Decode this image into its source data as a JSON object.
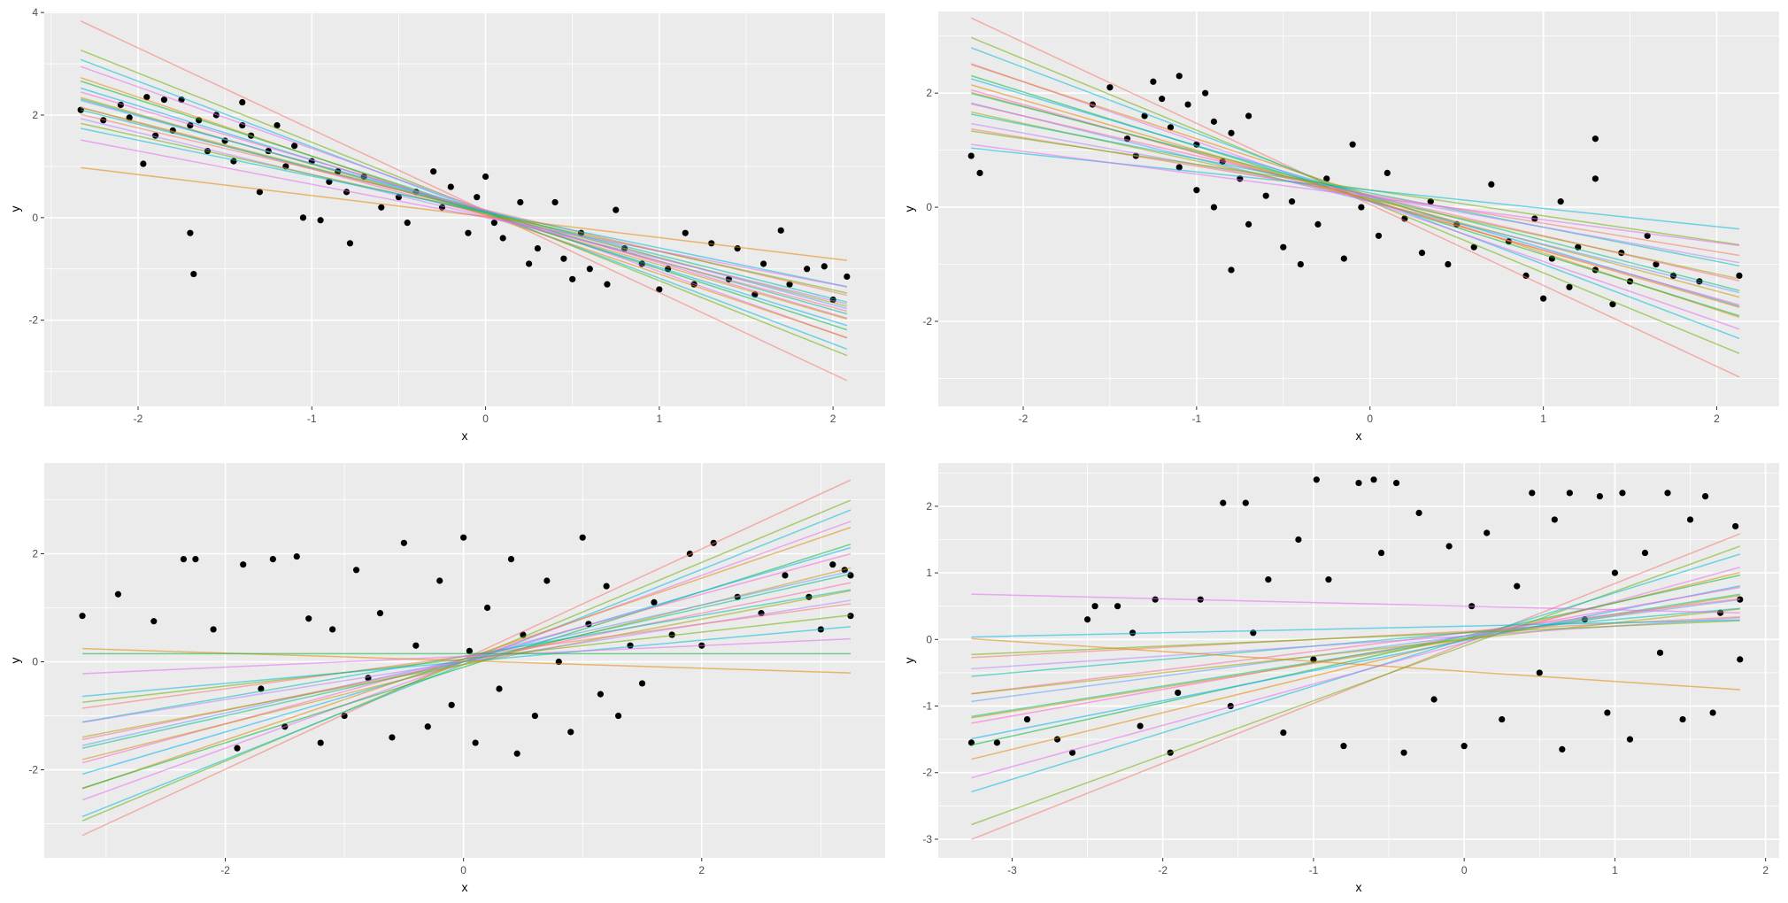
{
  "line_colors": [
    "#F8766D",
    "#E58700",
    "#C99800",
    "#A3A500",
    "#6BB100",
    "#00BA38",
    "#00BF7D",
    "#00C0AF",
    "#00BCD8",
    "#00B0F6",
    "#619CFF",
    "#B983FF",
    "#E76BF3",
    "#FD61D1",
    "#FF67A4"
  ],
  "point_color": "#000000",
  "panel_background": "#EBEBEB",
  "grid_color": "#FFFFFF",
  "chart_data": [
    {
      "type": "scatter",
      "xlabel": "x",
      "ylabel": "y",
      "xlim": [
        -2.54,
        2.3
      ],
      "ylim": [
        -3.68,
        4.02
      ],
      "xticks": [
        -2,
        -1,
        0,
        1,
        2
      ],
      "yticks": [
        -2,
        0,
        2,
        4
      ],
      "grid": true,
      "line_x_range": [
        -2.33,
        2.08
      ],
      "lines": [
        [
          0.13,
          -1.59
        ],
        [
          0.12,
          -1.35
        ],
        [
          0.1,
          -1.28
        ],
        [
          0.15,
          -1.2
        ],
        [
          0.05,
          -1.15
        ],
        [
          0.1,
          -1.1
        ],
        [
          0.08,
          -1.05
        ],
        [
          0.12,
          -1.0
        ],
        [
          0.06,
          -0.98
        ],
        [
          0.1,
          -0.95
        ],
        [
          0.14,
          -0.92
        ],
        [
          0.05,
          -0.9
        ],
        [
          0.1,
          -0.88
        ],
        [
          0.12,
          -0.85
        ],
        [
          0.02,
          -0.82
        ],
        [
          0.15,
          -0.8
        ],
        [
          0.09,
          -0.75
        ],
        [
          0.11,
          -0.7
        ],
        [
          0.0,
          -0.65
        ],
        [
          0.02,
          -0.41
        ]
      ],
      "points": [
        [
          -2.33,
          2.1
        ],
        [
          -2.2,
          1.9
        ],
        [
          -2.1,
          2.2
        ],
        [
          -2.05,
          1.95
        ],
        [
          -1.97,
          1.05
        ],
        [
          -1.95,
          2.35
        ],
        [
          -1.9,
          1.6
        ],
        [
          -1.85,
          2.3
        ],
        [
          -1.8,
          1.7
        ],
        [
          -1.75,
          2.3
        ],
        [
          -1.7,
          1.8
        ],
        [
          -1.65,
          1.9
        ],
        [
          -1.6,
          1.3
        ],
        [
          -1.55,
          2.0
        ],
        [
          -1.5,
          1.5
        ],
        [
          -1.45,
          1.1
        ],
        [
          -1.4,
          1.8
        ],
        [
          -1.35,
          1.6
        ],
        [
          -1.3,
          0.5
        ],
        [
          -1.25,
          1.3
        ],
        [
          -1.2,
          1.8
        ],
        [
          -1.15,
          1.0
        ],
        [
          -1.1,
          1.4
        ],
        [
          -1.05,
          0.0
        ],
        [
          -1.0,
          1.1
        ],
        [
          -0.95,
          -0.05
        ],
        [
          -0.9,
          0.7
        ],
        [
          -0.85,
          0.9
        ],
        [
          -0.8,
          0.5
        ],
        [
          -0.7,
          0.8
        ],
        [
          -0.6,
          0.2
        ],
        [
          -0.5,
          0.4
        ],
        [
          -0.45,
          -0.1
        ],
        [
          -0.4,
          0.5
        ],
        [
          -0.3,
          0.9
        ],
        [
          -0.25,
          0.2
        ],
        [
          -0.2,
          0.6
        ],
        [
          -0.1,
          -0.3
        ],
        [
          -0.05,
          0.4
        ],
        [
          0.0,
          0.8
        ],
        [
          0.05,
          -0.1
        ],
        [
          0.1,
          -0.4
        ],
        [
          0.2,
          0.3
        ],
        [
          0.25,
          -0.9
        ],
        [
          0.3,
          -0.6
        ],
        [
          0.4,
          0.3
        ],
        [
          0.45,
          -0.8
        ],
        [
          0.5,
          -1.2
        ],
        [
          0.55,
          -0.3
        ],
        [
          0.6,
          -1.0
        ],
        [
          0.7,
          -1.3
        ],
        [
          0.75,
          0.15
        ],
        [
          0.8,
          -0.6
        ],
        [
          0.9,
          -0.9
        ],
        [
          1.0,
          -1.4
        ],
        [
          1.05,
          -1.0
        ],
        [
          1.15,
          -0.3
        ],
        [
          1.2,
          -1.3
        ],
        [
          1.3,
          -0.5
        ],
        [
          1.4,
          -1.2
        ],
        [
          1.45,
          -0.6
        ],
        [
          1.55,
          -1.5
        ],
        [
          1.6,
          -0.9
        ],
        [
          1.7,
          -0.25
        ],
        [
          1.75,
          -1.3
        ],
        [
          1.85,
          -1.0
        ],
        [
          1.95,
          -0.95
        ],
        [
          2.0,
          -1.6
        ],
        [
          2.08,
          -1.15
        ],
        [
          -1.7,
          -0.3
        ],
        [
          -1.68,
          -1.1
        ],
        [
          -1.4,
          2.25
        ],
        [
          -0.78,
          -0.5
        ]
      ]
    },
    {
      "type": "scatter",
      "xlabel": "x",
      "ylabel": "y",
      "xlim": [
        -2.49,
        2.36
      ],
      "ylim": [
        -3.49,
        3.43
      ],
      "xticks": [
        -2,
        -1,
        0,
        1,
        2
      ],
      "yticks": [
        -2,
        0,
        2
      ],
      "grid": true,
      "line_x_range": [
        -2.3,
        2.13
      ],
      "lines": [
        [
          0.05,
          -1.42
        ],
        [
          0.1,
          -1.25
        ],
        [
          0.15,
          -1.15
        ],
        [
          0.1,
          -1.05
        ],
        [
          0.2,
          -1.0
        ],
        [
          0.12,
          -0.95
        ],
        [
          0.18,
          -0.9
        ],
        [
          0.1,
          -0.85
        ],
        [
          0.15,
          -0.81
        ],
        [
          0.2,
          -0.78
        ],
        [
          0.1,
          -0.75
        ],
        [
          0.2,
          -0.7
        ],
        [
          0.15,
          -0.66
        ],
        [
          0.25,
          -0.6
        ],
        [
          0.2,
          -0.55
        ],
        [
          0.22,
          -0.5
        ],
        [
          0.3,
          -0.45
        ],
        [
          0.3,
          -0.32
        ],
        [
          0.18,
          -0.4
        ],
        [
          0.12,
          -0.88
        ]
      ],
      "points": [
        [
          -2.3,
          0.9
        ],
        [
          -2.25,
          0.6
        ],
        [
          -1.6,
          1.8
        ],
        [
          -1.5,
          2.1
        ],
        [
          -1.4,
          1.2
        ],
        [
          -1.35,
          0.9
        ],
        [
          -1.3,
          1.6
        ],
        [
          -1.25,
          2.2
        ],
        [
          -1.2,
          1.9
        ],
        [
          -1.15,
          1.4
        ],
        [
          -1.1,
          2.3
        ],
        [
          -1.1,
          0.7
        ],
        [
          -1.05,
          1.8
        ],
        [
          -1.0,
          1.1
        ],
        [
          -1.0,
          0.3
        ],
        [
          -0.95,
          2.0
        ],
        [
          -0.9,
          1.5
        ],
        [
          -0.9,
          0.0
        ],
        [
          -0.85,
          0.8
        ],
        [
          -0.8,
          1.3
        ],
        [
          -0.8,
          -1.1
        ],
        [
          -0.75,
          0.5
        ],
        [
          -0.7,
          1.6
        ],
        [
          -0.7,
          -0.3
        ],
        [
          -0.6,
          0.2
        ],
        [
          -0.5,
          -0.7
        ],
        [
          -0.45,
          0.1
        ],
        [
          -0.4,
          -1.0
        ],
        [
          -0.3,
          -0.3
        ],
        [
          -0.25,
          0.5
        ],
        [
          -0.15,
          -0.9
        ],
        [
          -0.1,
          1.1
        ],
        [
          -0.05,
          0.0
        ],
        [
          0.05,
          -0.5
        ],
        [
          0.1,
          0.6
        ],
        [
          0.2,
          -0.2
        ],
        [
          0.3,
          -0.8
        ],
        [
          0.35,
          0.1
        ],
        [
          0.45,
          -1.0
        ],
        [
          0.5,
          -0.3
        ],
        [
          0.6,
          -0.7
        ],
        [
          0.7,
          0.4
        ],
        [
          0.8,
          -0.6
        ],
        [
          0.9,
          -1.2
        ],
        [
          0.95,
          -0.2
        ],
        [
          1.0,
          -1.6
        ],
        [
          1.05,
          -0.9
        ],
        [
          1.1,
          0.1
        ],
        [
          1.15,
          -1.4
        ],
        [
          1.2,
          -0.7
        ],
        [
          1.3,
          1.2
        ],
        [
          1.3,
          0.5
        ],
        [
          1.3,
          -1.1
        ],
        [
          1.4,
          -1.7
        ],
        [
          1.45,
          -0.8
        ],
        [
          1.5,
          -1.3
        ],
        [
          1.6,
          -0.5
        ],
        [
          1.65,
          -1.0
        ],
        [
          1.75,
          -1.2
        ],
        [
          1.9,
          -1.3
        ],
        [
          2.13,
          -1.2
        ]
      ]
    },
    {
      "type": "scatter",
      "xlabel": "x",
      "ylabel": "y",
      "xlim": [
        -3.52,
        3.54
      ],
      "ylim": [
        -3.63,
        3.68
      ],
      "xticks": [
        -2,
        0,
        2
      ],
      "yticks": [
        -2,
        0,
        2
      ],
      "grid": true,
      "line_x_range": [
        -3.2,
        3.25
      ],
      "lines": [
        [
          0.05,
          1.02
        ],
        [
          0.0,
          0.92
        ],
        [
          -0.05,
          0.88
        ],
        [
          0.0,
          0.8
        ],
        [
          0.05,
          0.75
        ],
        [
          -0.1,
          0.7
        ],
        [
          0.0,
          0.65
        ],
        [
          0.05,
          0.6
        ],
        [
          -0.05,
          0.55
        ],
        [
          0.0,
          0.5
        ],
        [
          0.05,
          0.5
        ],
        [
          0.0,
          0.45
        ],
        [
          -0.05,
          0.42
        ],
        [
          0.1,
          0.38
        ],
        [
          0.0,
          0.35
        ],
        [
          0.1,
          0.3
        ],
        [
          0.05,
          0.25
        ],
        [
          0.0,
          0.2
        ],
        [
          0.1,
          0.1
        ],
        [
          0.02,
          -0.07
        ],
        [
          0.15,
          0.0
        ]
      ],
      "points": [
        [
          -3.2,
          0.85
        ],
        [
          -2.9,
          1.25
        ],
        [
          -2.6,
          0.75
        ],
        [
          -2.35,
          1.9
        ],
        [
          -2.25,
          1.9
        ],
        [
          -2.1,
          0.6
        ],
        [
          -1.9,
          -1.6
        ],
        [
          -1.85,
          1.8
        ],
        [
          -1.7,
          -0.5
        ],
        [
          -1.6,
          1.9
        ],
        [
          -1.5,
          -1.2
        ],
        [
          -1.4,
          1.95
        ],
        [
          -1.3,
          0.8
        ],
        [
          -1.2,
          -1.5
        ],
        [
          -1.1,
          0.6
        ],
        [
          -1.0,
          -1.0
        ],
        [
          -0.9,
          1.7
        ],
        [
          -0.8,
          -0.3
        ],
        [
          -0.7,
          0.9
        ],
        [
          -0.6,
          -1.4
        ],
        [
          -0.5,
          2.2
        ],
        [
          -0.4,
          0.3
        ],
        [
          -0.3,
          -1.2
        ],
        [
          -0.2,
          1.5
        ],
        [
          -0.1,
          -0.8
        ],
        [
          0.0,
          2.3
        ],
        [
          0.05,
          0.2
        ],
        [
          0.1,
          -1.5
        ],
        [
          0.2,
          1.0
        ],
        [
          0.3,
          -0.5
        ],
        [
          0.4,
          1.9
        ],
        [
          0.45,
          -1.7
        ],
        [
          0.5,
          0.5
        ],
        [
          0.6,
          -1.0
        ],
        [
          0.7,
          1.5
        ],
        [
          0.8,
          0.0
        ],
        [
          0.9,
          -1.3
        ],
        [
          1.0,
          2.3
        ],
        [
          1.05,
          0.7
        ],
        [
          1.15,
          -0.6
        ],
        [
          1.2,
          1.4
        ],
        [
          1.3,
          -1.0
        ],
        [
          1.4,
          0.3
        ],
        [
          1.5,
          -0.4
        ],
        [
          1.6,
          1.1
        ],
        [
          1.75,
          0.5
        ],
        [
          1.9,
          2.0
        ],
        [
          2.0,
          0.3
        ],
        [
          2.1,
          2.2
        ],
        [
          2.3,
          1.2
        ],
        [
          2.5,
          0.9
        ],
        [
          2.7,
          1.6
        ],
        [
          2.9,
          1.2
        ],
        [
          3.0,
          0.6
        ],
        [
          3.1,
          1.8
        ],
        [
          3.2,
          1.7
        ],
        [
          3.25,
          0.85
        ],
        [
          3.25,
          1.6
        ]
      ]
    },
    {
      "type": "scatter",
      "xlabel": "x",
      "ylabel": "y",
      "xlim": [
        -3.49,
        2.09
      ],
      "ylim": [
        -3.28,
        2.65
      ],
      "xticks": [
        -3,
        -2,
        -1,
        0,
        1,
        2
      ],
      "yticks": [
        -3,
        -2,
        -1,
        0,
        1,
        2
      ],
      "grid": true,
      "line_x_range": [
        -3.27,
        1.83
      ],
      "lines": [
        [
          -0.06,
          0.9
        ],
        [
          -0.1,
          0.82
        ],
        [
          0.0,
          0.7
        ],
        [
          -0.05,
          0.62
        ],
        [
          0.0,
          0.55
        ],
        [
          0.05,
          0.5
        ],
        [
          -0.02,
          0.45
        ],
        [
          0.05,
          0.4
        ],
        [
          0.0,
          0.36
        ],
        [
          0.02,
          0.36
        ],
        [
          0.05,
          0.3
        ],
        [
          0.1,
          0.28
        ],
        [
          0.0,
          0.25
        ],
        [
          0.1,
          0.2
        ],
        [
          0.05,
          0.15
        ],
        [
          0.12,
          0.12
        ],
        [
          0.1,
          0.1
        ],
        [
          0.2,
          0.05
        ],
        [
          0.5,
          -0.055
        ],
        [
          -0.48,
          -0.15
        ]
      ],
      "points": [
        [
          -3.27,
          -1.55
        ],
        [
          -3.1,
          -1.55
        ],
        [
          -2.9,
          -1.2
        ],
        [
          -2.7,
          -1.5
        ],
        [
          -2.6,
          -1.7
        ],
        [
          -2.5,
          0.3
        ],
        [
          -2.45,
          0.5
        ],
        [
          -2.3,
          0.5
        ],
        [
          -2.2,
          0.1
        ],
        [
          -2.15,
          -1.3
        ],
        [
          -2.05,
          0.6
        ],
        [
          -1.95,
          -1.7
        ],
        [
          -1.9,
          -0.8
        ],
        [
          -1.75,
          0.6
        ],
        [
          -1.6,
          2.05
        ],
        [
          -1.55,
          -1.0
        ],
        [
          -1.45,
          2.05
        ],
        [
          -1.4,
          0.1
        ],
        [
          -1.3,
          0.9
        ],
        [
          -1.2,
          -1.4
        ],
        [
          -1.1,
          1.5
        ],
        [
          -1.0,
          -0.3
        ],
        [
          -0.98,
          2.4
        ],
        [
          -0.9,
          0.9
        ],
        [
          -0.8,
          -1.6
        ],
        [
          -0.7,
          2.35
        ],
        [
          -0.6,
          2.4
        ],
        [
          -0.55,
          1.3
        ],
        [
          -0.45,
          2.35
        ],
        [
          -0.4,
          -1.7
        ],
        [
          -0.3,
          1.9
        ],
        [
          -0.2,
          -0.9
        ],
        [
          -0.1,
          1.4
        ],
        [
          0.0,
          -1.6
        ],
        [
          0.05,
          0.5
        ],
        [
          0.15,
          1.6
        ],
        [
          0.25,
          -1.2
        ],
        [
          0.35,
          0.8
        ],
        [
          0.45,
          2.2
        ],
        [
          0.5,
          -0.5
        ],
        [
          0.6,
          1.8
        ],
        [
          0.65,
          -1.65
        ],
        [
          0.7,
          2.2
        ],
        [
          0.8,
          0.3
        ],
        [
          0.9,
          2.15
        ],
        [
          0.95,
          -1.1
        ],
        [
          1.0,
          1.0
        ],
        [
          1.05,
          2.2
        ],
        [
          1.1,
          -1.5
        ],
        [
          1.2,
          1.3
        ],
        [
          1.3,
          -0.2
        ],
        [
          1.35,
          2.2
        ],
        [
          1.45,
          -1.2
        ],
        [
          1.5,
          1.8
        ],
        [
          1.6,
          2.15
        ],
        [
          1.65,
          -1.1
        ],
        [
          1.7,
          0.4
        ],
        [
          1.8,
          1.7
        ],
        [
          1.83,
          -0.3
        ],
        [
          1.83,
          0.6
        ]
      ]
    }
  ]
}
